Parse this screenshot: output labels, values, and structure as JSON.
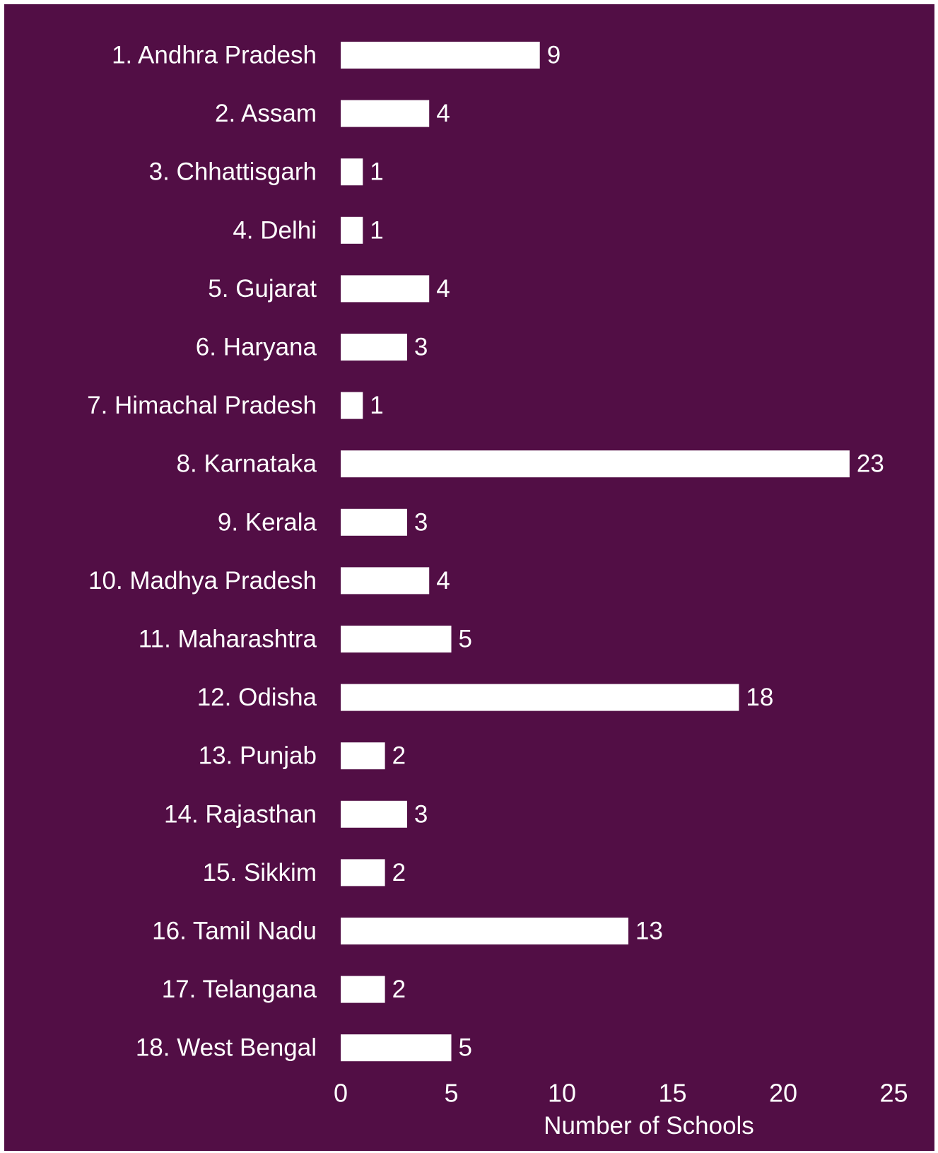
{
  "chart_data": {
    "type": "bar",
    "orientation": "horizontal",
    "categories": [
      "1. Andhra Pradesh",
      "2. Assam",
      "3. Chhattisgarh",
      "4. Delhi",
      "5. Gujarat",
      "6. Haryana",
      "7. Himachal Pradesh",
      "8. Karnataka",
      "9. Kerala",
      "10. Madhya Pradesh",
      "11. Maharashtra",
      "12. Odisha",
      "13. Punjab",
      "14. Rajasthan",
      "15. Sikkim",
      "16. Tamil Nadu",
      "17. Telangana",
      "18. West Bengal"
    ],
    "values": [
      9,
      4,
      1,
      1,
      4,
      3,
      1,
      23,
      3,
      4,
      5,
      18,
      2,
      3,
      2,
      13,
      2,
      5
    ],
    "xlabel": "Number of Schools",
    "ylabel": "",
    "xlim": [
      0,
      25
    ],
    "xticks": [
      0,
      5,
      10,
      15,
      20,
      25
    ],
    "grid": false,
    "legend": "none",
    "background_color": "#520e45",
    "bar_color": "#ffffff",
    "text_color": "#ffffff"
  }
}
